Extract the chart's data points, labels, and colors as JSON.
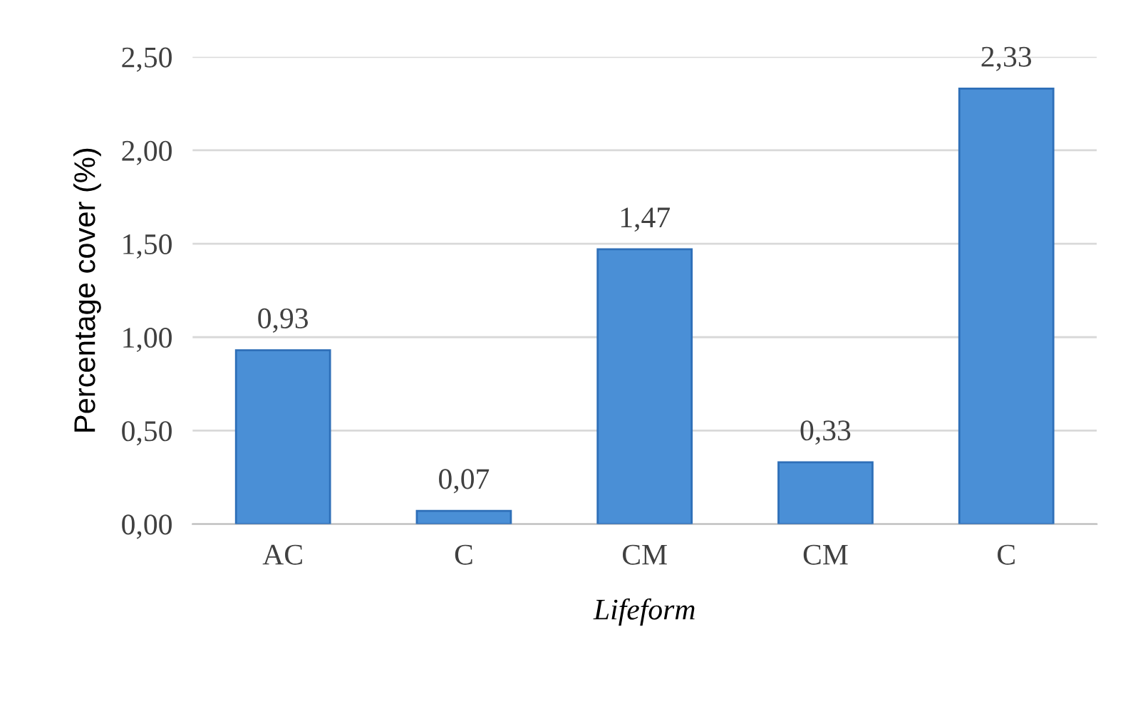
{
  "chart_data": {
    "type": "bar",
    "xlabel": "Lifeform",
    "ylabel": "Percentage cover (%)",
    "categories": [
      "AC",
      "C",
      "CM",
      "CM",
      "C"
    ],
    "values": [
      0.93,
      0.07,
      1.47,
      0.33,
      2.33
    ],
    "value_labels": [
      "0,93",
      "0,07",
      "1,47",
      "0,33",
      "2,33"
    ],
    "color": "#4a8fd6",
    "ylim": [
      0,
      2.5
    ],
    "yticks": [
      {
        "value": 0,
        "label": "0,00"
      },
      {
        "value": 0.5,
        "label": "0,50"
      },
      {
        "value": 1,
        "label": "1,00"
      },
      {
        "value": 1.5,
        "label": "1,50"
      },
      {
        "value": 2,
        "label": "2,00"
      },
      {
        "value": 2.5,
        "label": "2,50"
      }
    ],
    "grid": "y",
    "legend": false
  }
}
